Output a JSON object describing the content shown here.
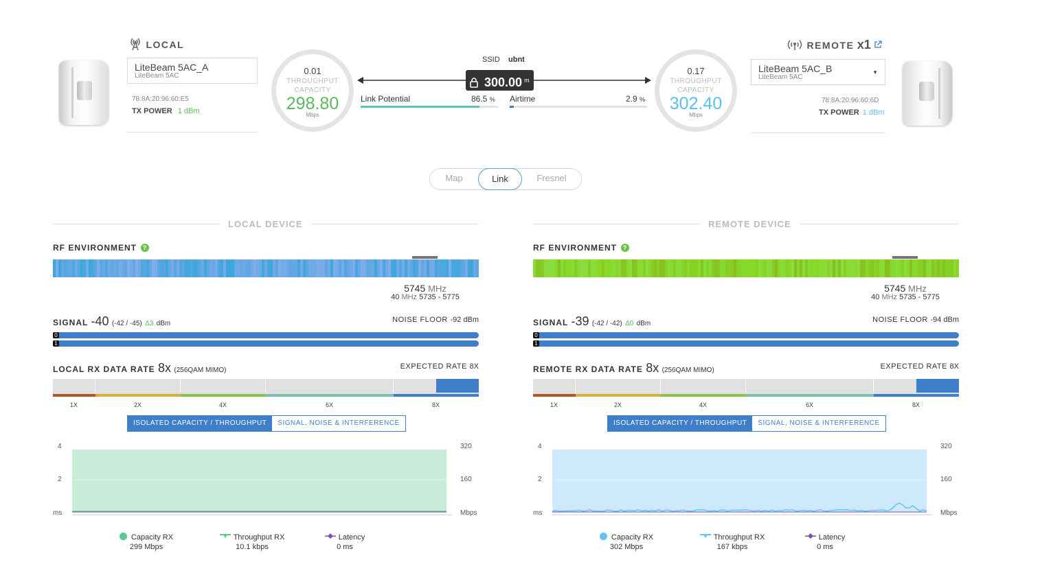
{
  "link": {
    "ssid_label": "SSID",
    "ssid_value": "ubnt",
    "distance_value": "300.00",
    "distance_unit": "m",
    "link_potential_label": "Link Potential",
    "link_potential_value": "86.5",
    "link_potential_percent": 86.5,
    "airtime_label": "Airtime",
    "airtime_value": "2.9",
    "airtime_percent": 2.9,
    "percent_unit": "%"
  },
  "local": {
    "title": "LOCAL",
    "device_name": "LiteBeam 5AC_A",
    "device_model": "LiteBeam 5AC",
    "mac": "78:8A:20:96:60:E5",
    "tx_power_label": "TX POWER",
    "tx_power_value": "1 dBm",
    "gauge_top": "0.01",
    "gauge_label1": "THROUGHPUT",
    "gauge_label2": "CAPACITY",
    "gauge_value": "298.80",
    "gauge_unit": "Mbps"
  },
  "remote": {
    "title": "REMOTE",
    "count": "x1",
    "device_name": "LiteBeam 5AC_B",
    "device_model": "LiteBeam 5AC",
    "mac": "78:8A:20:96:60:6D",
    "tx_power_label": "TX POWER",
    "tx_power_value": "1 dBm",
    "gauge_top": "0.17",
    "gauge_label1": "THROUGHPUT",
    "gauge_label2": "CAPACITY",
    "gauge_value": "302.40",
    "gauge_unit": "Mbps"
  },
  "tabs": [
    "Map",
    "Link",
    "Fresnel"
  ],
  "active_tab": "Link",
  "panels": [
    {
      "section_title": "LOCAL DEVICE",
      "rf_label": "RF ENVIRONMENT",
      "freq_value": "5745",
      "freq_unit": "MHz",
      "width_value": "40",
      "width_unit": "MHz",
      "range": "5735 - 5775",
      "signal_label": "SIGNAL",
      "signal_value": "-40",
      "signal_chains": "(-42 / -45)",
      "signal_delta": "Δ3",
      "signal_unit": "dBm",
      "noise_label": "NOISE FLOOR",
      "noise_value": "-92 dBm",
      "chain_labels": [
        "0",
        "1"
      ],
      "rx_label": "LOCAL RX DATA RATE",
      "rx_value": "8x",
      "rx_mode": "(256QAM MIMO)",
      "expected_label": "EXPECTED RATE",
      "expected_value": "8X",
      "rate_ticks": [
        "1X",
        "2X",
        "4X",
        "6X",
        "8X"
      ],
      "btn_on": "ISOLATED CAPACITY / THROUGHPUT",
      "btn_off": "SIGNAL, NOISE & INTERFERENCE",
      "y_left": [
        "4",
        "2",
        "ms"
      ],
      "y_right": [
        "320",
        "160",
        "Mbps"
      ],
      "legend": [
        {
          "name": "Capacity RX",
          "value": "299 Mbps"
        },
        {
          "name": "Throughput RX",
          "value": "10.1 kbps"
        },
        {
          "name": "Latency",
          "value": "0 ms"
        }
      ],
      "colors": {
        "fill": "#c8ecd9",
        "legend": "#5ccb8b",
        "throughput": "#5ccb8b",
        "latency": "#7a4fb5"
      }
    },
    {
      "section_title": "REMOTE DEVICE",
      "rf_label": "RF ENVIRONMENT",
      "freq_value": "5745",
      "freq_unit": "MHz",
      "width_value": "40",
      "width_unit": "MHz",
      "range": "5735 - 5775",
      "signal_label": "SIGNAL",
      "signal_value": "-39",
      "signal_chains": "(-42 / -42)",
      "signal_delta": "Δ0",
      "signal_unit": "dBm",
      "noise_label": "NOISE FLOOR",
      "noise_value": "-94 dBm",
      "chain_labels": [
        "0",
        "1"
      ],
      "rx_label": "REMOTE RX DATA RATE",
      "rx_value": "8x",
      "rx_mode": "(256QAM MIMO)",
      "expected_label": "EXPECTED RATE",
      "expected_value": "8X",
      "rate_ticks": [
        "1X",
        "2X",
        "4X",
        "6X",
        "8X"
      ],
      "btn_on": "ISOLATED CAPACITY / THROUGHPUT",
      "btn_off": "SIGNAL, NOISE & INTERFERENCE",
      "y_left": [
        "4",
        "2",
        "ms"
      ],
      "y_right": [
        "320",
        "160",
        "Mbps"
      ],
      "legend": [
        {
          "name": "Capacity RX",
          "value": "302 Mbps"
        },
        {
          "name": "Throughput RX",
          "value": "167 kbps"
        },
        {
          "name": "Latency",
          "value": "0 ms"
        }
      ],
      "colors": {
        "fill": "#cde9fb",
        "legend": "#63c3f5",
        "throughput": "#63c3f5",
        "latency": "#7a4fb5"
      }
    }
  ],
  "colors": {
    "accent_blue": "#3f7fc9",
    "green": "#5cb85c",
    "cyan": "#5bc0f0",
    "rf_local": "#56a9e0",
    "rf_remote": "#8ccc2c"
  }
}
